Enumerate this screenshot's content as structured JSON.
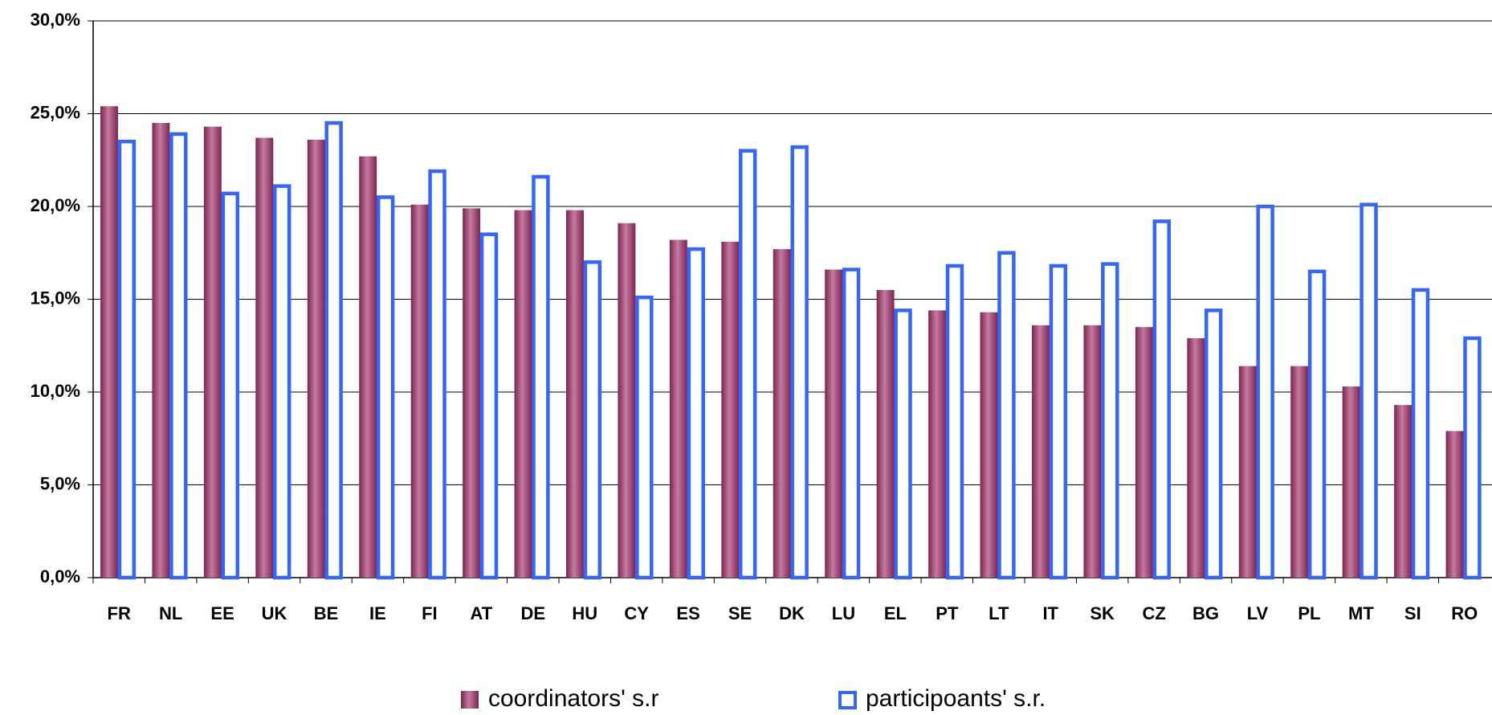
{
  "chart_data": {
    "type": "bar",
    "categories": [
      "FR",
      "NL",
      "EE",
      "UK",
      "BE",
      "IE",
      "FI",
      "AT",
      "DE",
      "HU",
      "CY",
      "ES",
      "SE",
      "DK",
      "LU",
      "EL",
      "PT",
      "LT",
      "IT",
      "SK",
      "CZ",
      "BG",
      "LV",
      "PL",
      "MT",
      "SI",
      "RO"
    ],
    "series": [
      {
        "name": "coordinators' s.r",
        "color": "#9b3b6b",
        "values": [
          25.4,
          24.5,
          24.3,
          23.7,
          23.6,
          22.7,
          20.1,
          19.9,
          19.8,
          19.8,
          19.1,
          18.2,
          18.1,
          17.7,
          16.6,
          15.5,
          14.4,
          14.3,
          13.6,
          13.6,
          13.5,
          12.9,
          11.4,
          11.4,
          10.3,
          9.3,
          7.9
        ]
      },
      {
        "name": "participoants' s.r.",
        "color": "#3366ff",
        "values": [
          23.5,
          23.9,
          20.7,
          21.1,
          24.5,
          20.5,
          21.9,
          18.5,
          21.6,
          17.0,
          15.1,
          17.7,
          23.0,
          23.2,
          16.6,
          14.4,
          16.8,
          17.5,
          16.8,
          16.9,
          19.2,
          14.4,
          20.0,
          16.5,
          20.1,
          15.5,
          12.9
        ]
      }
    ],
    "ylim": [
      0,
      30
    ],
    "yticks": [
      {
        "value": 0,
        "label": "0,0%"
      },
      {
        "value": 5,
        "label": "5,0%"
      },
      {
        "value": 10,
        "label": "10,0%"
      },
      {
        "value": 15,
        "label": "15,0%"
      },
      {
        "value": 20,
        "label": "20,0%"
      },
      {
        "value": 25,
        "label": "25,0%"
      },
      {
        "value": 30,
        "label": "30,0%"
      }
    ],
    "grid": true
  }
}
